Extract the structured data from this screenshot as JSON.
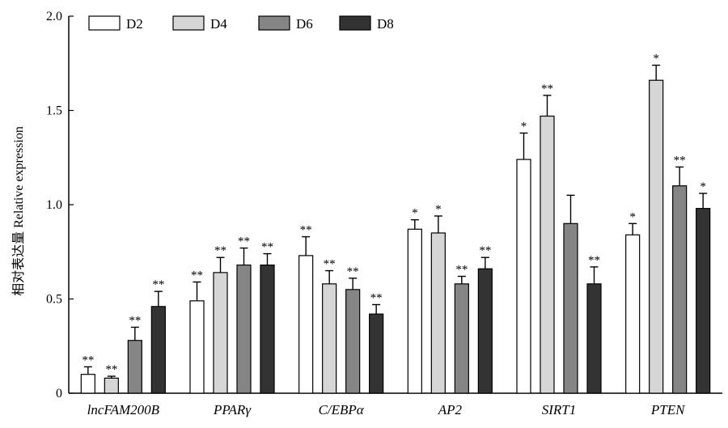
{
  "chart_data": {
    "type": "bar",
    "ylabel": "相对表达量 Relative expression",
    "xlabel": "",
    "ylim": [
      0,
      2.0
    ],
    "yticks": [
      "0",
      "0.5",
      "1.0",
      "1.5",
      "2.0"
    ],
    "grid": false,
    "legend_position": "top-left",
    "categories": [
      "lncFAM200B",
      "PPARγ",
      "C/EBPα",
      "AP2",
      "SIRT1",
      "PTEN"
    ],
    "series": [
      {
        "name": "D2",
        "color": "#ffffff",
        "values": [
          0.1,
          0.49,
          0.73,
          0.87,
          1.24,
          0.84
        ],
        "errors": [
          0.04,
          0.1,
          0.1,
          0.05,
          0.14,
          0.06
        ],
        "significance": [
          "**",
          "**",
          "**",
          "*",
          "*",
          "*"
        ]
      },
      {
        "name": "D4",
        "color": "#d6d6d6",
        "values": [
          0.08,
          0.64,
          0.58,
          0.85,
          1.47,
          1.66
        ],
        "errors": [
          0.01,
          0.08,
          0.07,
          0.09,
          0.11,
          0.08
        ],
        "significance": [
          "**",
          "**",
          "**",
          "*",
          "**",
          "*"
        ]
      },
      {
        "name": "D6",
        "color": "#858585",
        "values": [
          0.28,
          0.68,
          0.55,
          0.58,
          0.9,
          1.1
        ],
        "errors": [
          0.07,
          0.09,
          0.06,
          0.04,
          0.15,
          0.1
        ],
        "significance": [
          "**",
          "**",
          "**",
          "**",
          "",
          "**"
        ]
      },
      {
        "name": "D8",
        "color": "#333333",
        "values": [
          0.46,
          0.68,
          0.42,
          0.66,
          0.58,
          0.98
        ],
        "errors": [
          0.08,
          0.06,
          0.05,
          0.06,
          0.09,
          0.08
        ],
        "significance": [
          "**",
          "**",
          "**",
          "**",
          "**",
          "*"
        ]
      }
    ]
  }
}
